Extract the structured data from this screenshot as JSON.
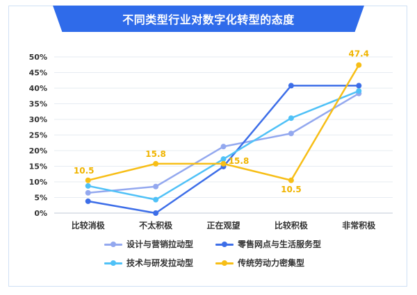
{
  "chart_data": {
    "type": "line",
    "title": "不同类型行业对数字化转型的态度",
    "categories": [
      "比较消极",
      "不太积极",
      "正在观望",
      "比较积极",
      "非常积极"
    ],
    "ylim": [
      0,
      50
    ],
    "yticks": [
      "0%",
      "5%",
      "10%",
      "15%",
      "20%",
      "25%",
      "30%",
      "35%",
      "40%",
      "45%",
      "50%"
    ],
    "grid": true,
    "legend_position": "bottom",
    "series": [
      {
        "name": "设计与营销拉动型",
        "color": "#93a8ef",
        "values": [
          6.5,
          8.5,
          21.3,
          25.5,
          38.3
        ]
      },
      {
        "name": "零售网点与生活服务型",
        "color": "#3d6ee8",
        "values": [
          3.8,
          0,
          14.9,
          40.8,
          40.8
        ]
      },
      {
        "name": "技术与研发拉动型",
        "color": "#4fc1f7",
        "values": [
          8.7,
          4.3,
          17.3,
          30.4,
          39.1
        ]
      },
      {
        "name": "传统劳动力密集型",
        "color": "#f7be16",
        "values": [
          10.5,
          15.8,
          15.8,
          10.5,
          47.4
        ]
      }
    ],
    "annotations": [
      "10.5",
      "15.8",
      "15.8",
      "10.5",
      "47.4"
    ]
  }
}
